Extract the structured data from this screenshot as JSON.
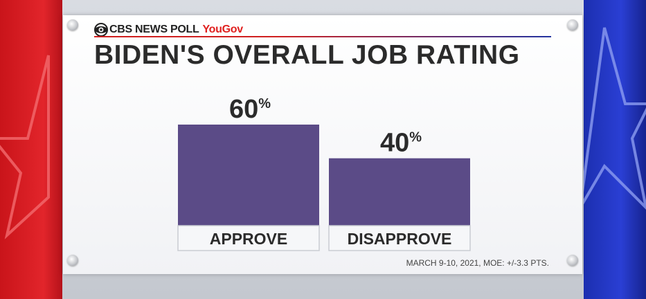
{
  "brand": {
    "network": "CBS NEWS POLL",
    "partner": "YouGov"
  },
  "colors": {
    "bar": "#5b4b87",
    "label_box": "#f6f7f9",
    "label_border": "#c9ccd2",
    "text": "#2b2b2b"
  },
  "chart_data": {
    "type": "bar",
    "title": "BIDEN'S OVERALL JOB RATING",
    "categories": [
      "APPROVE",
      "DISAPPROVE"
    ],
    "values": [
      60,
      40
    ],
    "value_labels": [
      "60",
      "40"
    ],
    "value_suffix": "%",
    "xlabel": "",
    "ylabel": "",
    "ylim": [
      0,
      100
    ],
    "grid": false
  },
  "footnote": "MARCH 9-10, 2021, MOE: +/-3.3 PTS."
}
